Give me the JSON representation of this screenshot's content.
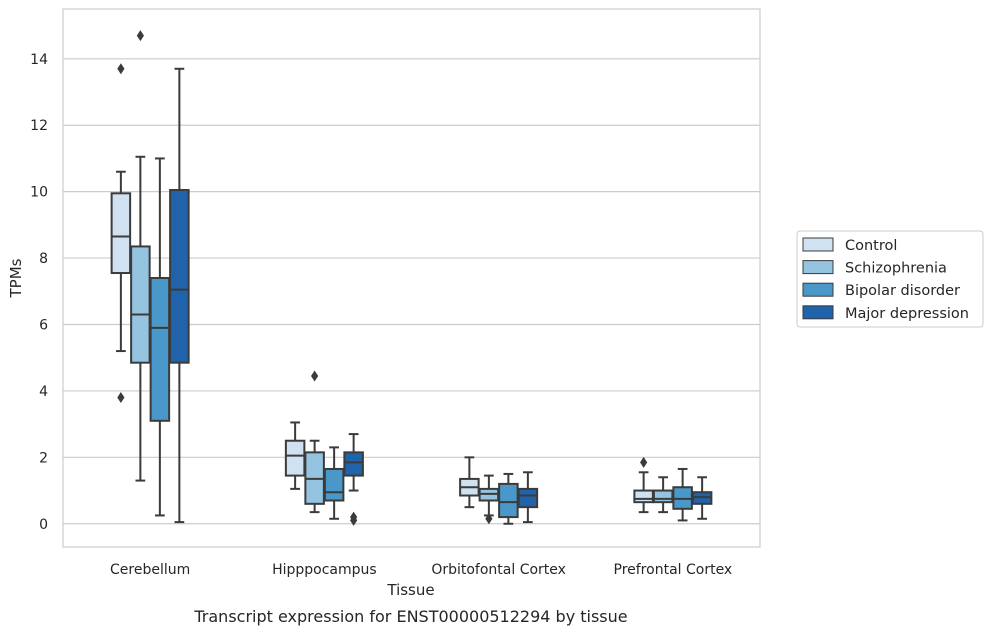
{
  "chart_data": {
    "type": "box",
    "xlabel": "Tissue",
    "ylabel": "TPMs",
    "caption": "Transcript expression for ENST00000512294 by tissue",
    "ylim": [
      -0.7,
      15.5
    ],
    "yticks": [
      "0",
      "2",
      "4",
      "6",
      "8",
      "10",
      "12",
      "14"
    ],
    "grid": true,
    "legend_placement": "right",
    "categories": [
      "Cerebellum",
      "Hipppocampus",
      "Orbitofontal Cortex",
      "Prefrontal Cortex"
    ],
    "series": [
      {
        "name": "Control",
        "color": "#d0e1f2",
        "boxes": [
          {
            "whislo": 5.2,
            "q1": 7.55,
            "med": 8.65,
            "q3": 9.95,
            "whishi": 10.6,
            "fliers": [
              13.7,
              3.8
            ]
          },
          {
            "whislo": 1.05,
            "q1": 1.45,
            "med": 2.05,
            "q3": 2.5,
            "whishi": 3.05,
            "fliers": []
          },
          {
            "whislo": 0.5,
            "q1": 0.85,
            "med": 1.1,
            "q3": 1.35,
            "whishi": 2.0,
            "fliers": []
          },
          {
            "whislo": 0.35,
            "q1": 0.65,
            "med": 0.75,
            "q3": 1.0,
            "whishi": 1.55,
            "fliers": [
              1.85
            ]
          }
        ]
      },
      {
        "name": "Schizophrenia",
        "color": "#94c4df",
        "boxes": [
          {
            "whislo": 1.3,
            "q1": 4.85,
            "med": 6.3,
            "q3": 8.35,
            "whishi": 11.05,
            "fliers": [
              14.7
            ]
          },
          {
            "whislo": 0.35,
            "q1": 0.6,
            "med": 1.35,
            "q3": 2.15,
            "whishi": 2.5,
            "fliers": [
              4.45
            ]
          },
          {
            "whislo": 0.25,
            "q1": 0.7,
            "med": 0.9,
            "q3": 1.05,
            "whishi": 1.45,
            "fliers": [
              0.15
            ]
          },
          {
            "whislo": 0.35,
            "q1": 0.65,
            "med": 0.75,
            "q3": 1.0,
            "whishi": 1.4,
            "fliers": []
          }
        ]
      },
      {
        "name": "Bipolar disorder",
        "color": "#4a98c9",
        "boxes": [
          {
            "whislo": 0.25,
            "q1": 3.1,
            "med": 5.9,
            "q3": 7.4,
            "whishi": 11.0,
            "fliers": []
          },
          {
            "whislo": 0.15,
            "q1": 0.7,
            "med": 0.95,
            "q3": 1.65,
            "whishi": 2.3,
            "fliers": []
          },
          {
            "whislo": 0.0,
            "q1": 0.2,
            "med": 0.65,
            "q3": 1.2,
            "whishi": 1.5,
            "fliers": []
          },
          {
            "whislo": 0.1,
            "q1": 0.45,
            "med": 0.75,
            "q3": 1.1,
            "whishi": 1.65,
            "fliers": []
          }
        ]
      },
      {
        "name": "Major depression",
        "color": "#2163aa",
        "boxes": [
          {
            "whislo": 0.05,
            "q1": 4.85,
            "med": 7.05,
            "q3": 10.05,
            "whishi": 13.7,
            "fliers": []
          },
          {
            "whislo": 1.0,
            "q1": 1.45,
            "med": 1.85,
            "q3": 2.15,
            "whishi": 2.7,
            "fliers": [
              0.2,
              0.1
            ]
          },
          {
            "whislo": 0.05,
            "q1": 0.5,
            "med": 0.85,
            "q3": 1.05,
            "whishi": 1.55,
            "fliers": []
          },
          {
            "whislo": 0.15,
            "q1": 0.6,
            "med": 0.8,
            "q3": 0.95,
            "whishi": 1.4,
            "fliers": []
          }
        ]
      }
    ]
  }
}
